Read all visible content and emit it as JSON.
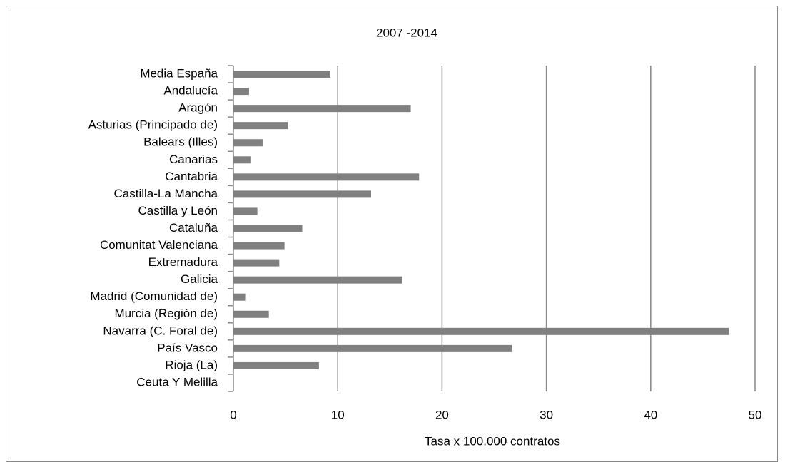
{
  "chart_data": {
    "type": "bar",
    "orientation": "horizontal",
    "title": "2007 -2014",
    "x_label": "Tasa x 100.000 contratos",
    "categories": [
      "Media España",
      "Andalucía",
      "Aragón",
      "Asturias (Principado de)",
      "Balears (Illes)",
      "Canarias",
      "Cantabria",
      "Castilla-La Mancha",
      "Castilla y León",
      "Cataluña",
      "Comunitat Valenciana",
      "Extremadura",
      "Galicia",
      "Madrid (Comunidad de)",
      "Murcia (Región de)",
      "Navarra (C. Foral de)",
      "País Vasco",
      "Rioja (La)",
      "Ceuta Y Melilla"
    ],
    "values": [
      9.3,
      1.5,
      17.0,
      5.2,
      2.8,
      1.7,
      17.8,
      13.2,
      2.3,
      6.6,
      4.9,
      4.4,
      16.2,
      1.2,
      3.4,
      47.5,
      26.7,
      8.2,
      0
    ],
    "color": "#808080",
    "xlim": [
      0,
      50
    ],
    "xticks": [
      0,
      10,
      20,
      30,
      40,
      50
    ],
    "grid": true
  }
}
